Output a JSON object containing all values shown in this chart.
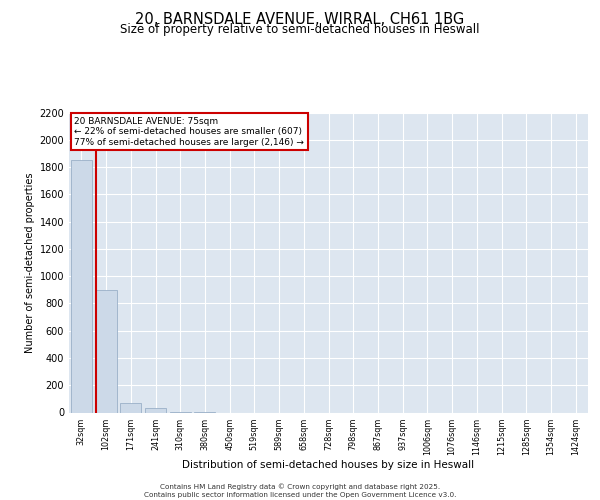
{
  "title_line1": "20, BARNSDALE AVENUE, WIRRAL, CH61 1BG",
  "title_line2": "Size of property relative to semi-detached houses in Heswall",
  "xlabel": "Distribution of semi-detached houses by size in Heswall",
  "ylabel": "Number of semi-detached properties",
  "annotation_title": "20 BARNSDALE AVENUE: 75sqm",
  "annotation_line2": "← 22% of semi-detached houses are smaller (607)",
  "annotation_line3": "77% of semi-detached houses are larger (2,146) →",
  "footer_line1": "Contains HM Land Registry data © Crown copyright and database right 2025.",
  "footer_line2": "Contains public sector information licensed under the Open Government Licence v3.0.",
  "categories": [
    "32sqm",
    "102sqm",
    "171sqm",
    "241sqm",
    "310sqm",
    "380sqm",
    "450sqm",
    "519sqm",
    "589sqm",
    "658sqm",
    "728sqm",
    "798sqm",
    "867sqm",
    "937sqm",
    "1006sqm",
    "1076sqm",
    "1146sqm",
    "1215sqm",
    "1285sqm",
    "1354sqm",
    "1424sqm"
  ],
  "values": [
    1850,
    900,
    70,
    30,
    4,
    1,
    0,
    0,
    0,
    0,
    0,
    0,
    0,
    0,
    0,
    0,
    0,
    0,
    0,
    0,
    0
  ],
  "bar_color": "#ccd9e8",
  "bar_edgecolor": "#9ab0c8",
  "property_line_color": "#cc0000",
  "annotation_box_color": "#cc0000",
  "plot_bg_color": "#dde6f0",
  "grid_color": "#ffffff",
  "ylim_max": 2200,
  "ytick_step": 200,
  "fig_bg_color": "#ffffff"
}
